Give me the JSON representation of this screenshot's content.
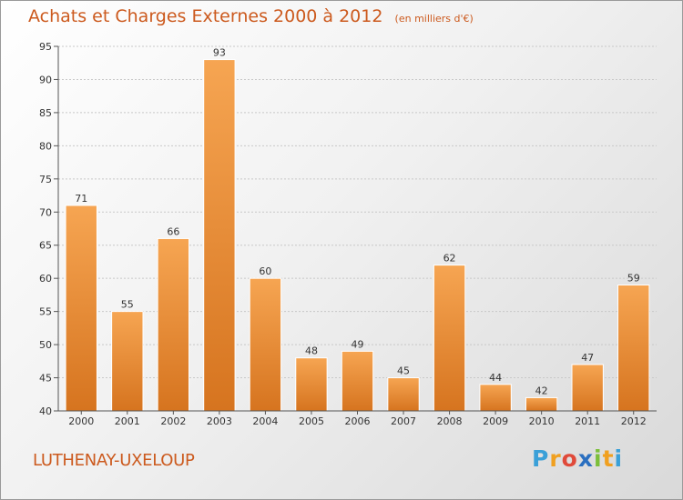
{
  "chart_data": {
    "type": "bar",
    "title": "Achats et Charges Externes 2000 à 2012",
    "subtitle": "(en milliers d'€)",
    "categories": [
      "2000",
      "2001",
      "2002",
      "2003",
      "2004",
      "2005",
      "2006",
      "2007",
      "2008",
      "2009",
      "2010",
      "2011",
      "2012"
    ],
    "values": [
      71,
      55,
      66,
      93,
      60,
      48,
      49,
      45,
      62,
      44,
      42,
      47,
      59
    ],
    "data_labels": [
      "71",
      "55",
      "66",
      "93",
      "60",
      "48",
      "49",
      "45",
      "62",
      "44",
      "42",
      "47",
      "59"
    ],
    "ylim": [
      40,
      95
    ],
    "yticks": [
      "40",
      "45",
      "50",
      "55",
      "60",
      "65",
      "70",
      "75",
      "80",
      "85",
      "90",
      "95"
    ],
    "xlabel": "",
    "ylabel": "",
    "grid": true,
    "bar_color_top": "#f6a552",
    "bar_color_bottom": "#d6741f"
  },
  "commune": "LUTHENAY-UXELOUP",
  "logo": {
    "text": "Proxiti",
    "letters": [
      "P",
      "r",
      "o",
      "x",
      "i",
      "t",
      "i"
    ],
    "colors": [
      "#3aa0d8",
      "#f0a020",
      "#e04a3a",
      "#2a6fc0",
      "#7cbf3a",
      "#f0a020",
      "#3aa0d8"
    ]
  }
}
